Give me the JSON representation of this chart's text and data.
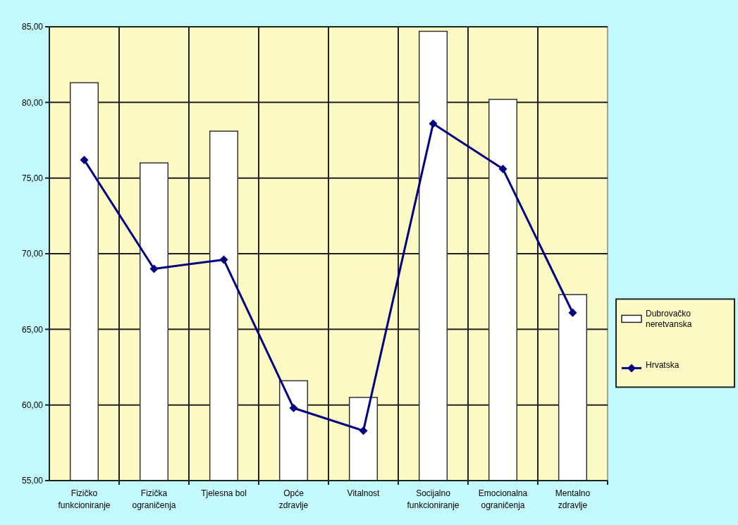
{
  "chart_data": {
    "type": "bar",
    "categories": [
      "Fizičko funkcioniranje",
      "Fizička ograničenja",
      "Tjelesna bol",
      "Opće zdravlje",
      "Vitalnost",
      "Socijalno funkcioniranje",
      "Emocionalna ograničenja",
      "Mentalno zdravlje"
    ],
    "series": [
      {
        "name": "Dubrovačko neretvanska",
        "color": "#ffffff",
        "values": [
          81.3,
          76.0,
          78.1,
          61.6,
          60.5,
          84.7,
          80.2,
          67.3
        ]
      },
      {
        "name": "Hrvatska",
        "color": "#000080",
        "type": "line",
        "values": [
          76.2,
          69.0,
          69.6,
          59.8,
          58.3,
          78.6,
          75.6,
          66.1
        ]
      }
    ],
    "ylim": [
      55,
      85
    ],
    "yticks": [
      {
        "value": 55,
        "label": "55,00"
      },
      {
        "value": 60,
        "label": "60,00"
      },
      {
        "value": 65,
        "label": "65,00"
      },
      {
        "value": 70,
        "label": "70,00"
      },
      {
        "value": 75,
        "label": "75,00"
      },
      {
        "value": 80,
        "label": "80,00"
      },
      {
        "value": 85,
        "label": "85,00"
      }
    ],
    "grid": true,
    "legend": "right",
    "marker": "diamond",
    "line_style": "solid"
  }
}
